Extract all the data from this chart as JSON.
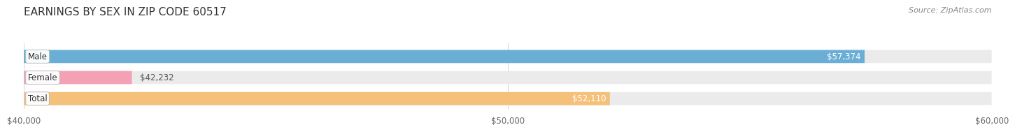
{
  "title": "EARNINGS BY SEX IN ZIP CODE 60517",
  "source": "Source: ZipAtlas.com",
  "categories": [
    "Male",
    "Female",
    "Total"
  ],
  "values": [
    57374,
    42232,
    52110
  ],
  "x_min": 40000,
  "x_max": 60000,
  "x_ticks": [
    40000,
    50000,
    60000
  ],
  "x_tick_labels": [
    "$40,000",
    "$50,000",
    "$60,000"
  ],
  "bar_colors": [
    "#6aaed6",
    "#f4a0b5",
    "#f5c07a"
  ],
  "bar_label_colors": [
    "#ffffff",
    "#555555",
    "#ffffff"
  ],
  "bar_labels": [
    "$57,374",
    "$42,232",
    "$52,110"
  ],
  "background_color": "#ffffff",
  "bar_bg_color": "#ebebeb",
  "bar_height": 0.62,
  "title_fontsize": 11,
  "source_fontsize": 8,
  "label_fontsize": 8.5,
  "tick_fontsize": 8.5,
  "category_fontsize": 8.5
}
